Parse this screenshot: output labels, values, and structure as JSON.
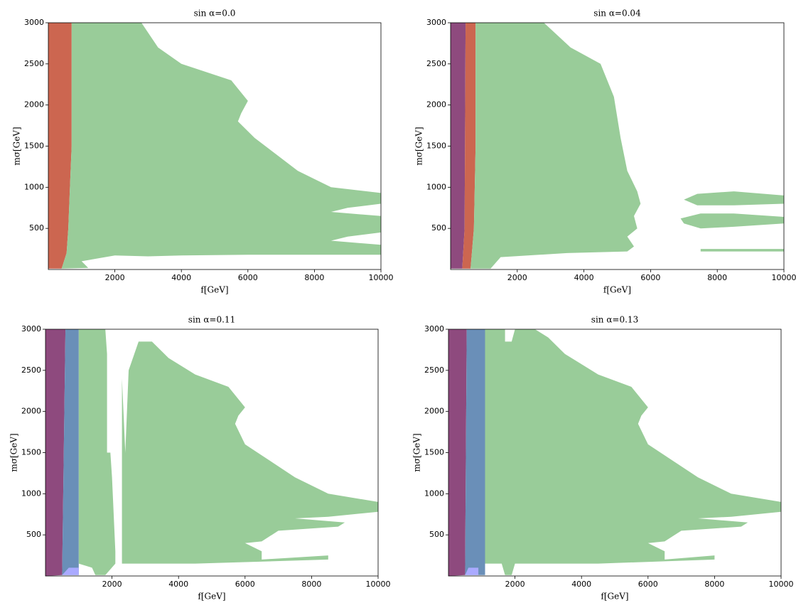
{
  "chart_data": [
    {
      "type": "area",
      "title": "sin α=0.0",
      "xlabel": "f[GeV]",
      "ylabel": "mσ[GeV]",
      "xlim": [
        0,
        10000
      ],
      "ylim": [
        0,
        3000
      ],
      "xticks": [
        2000,
        4000,
        6000,
        8000,
        10000
      ],
      "yticks": [
        500,
        1000,
        1500,
        2000,
        2500,
        3000
      ],
      "series": [
        {
          "color": "#cc6650",
          "x": [
            0,
            400,
            550,
            600,
            650,
            700,
            700,
            0
          ],
          "values": [
            10,
            10,
            200,
            500,
            1000,
            1500,
            3000,
            3000
          ]
        },
        {
          "color": "#99cc99",
          "x": [
            700,
            2800,
            3300,
            4000,
            5500,
            6000,
            5800,
            5700,
            6200,
            7500,
            8500,
            10000,
            10000,
            9000,
            8500,
            10000,
            10000,
            9000,
            8500,
            10000,
            10000,
            6000,
            4000,
            3000,
            2000,
            1000,
            1200,
            400,
            550,
            600,
            650,
            700
          ],
          "values": [
            3000,
            3000,
            2700,
            2500,
            2300,
            2050,
            1900,
            1800,
            1600,
            1200,
            1000,
            930,
            800,
            750,
            700,
            650,
            450,
            400,
            350,
            300,
            180,
            180,
            170,
            160,
            170,
            100,
            20,
            10,
            200,
            500,
            1000,
            1500
          ]
        }
      ]
    },
    {
      "type": "area",
      "title": "sin α=0.04",
      "xlabel": "f[GeV]",
      "ylabel": "mσ[GeV]",
      "xlim": [
        0,
        10000
      ],
      "ylim": [
        0,
        3000
      ],
      "xticks": [
        2000,
        4000,
        6000,
        8000,
        10000
      ],
      "yticks": [
        500,
        1000,
        1500,
        2000,
        2500,
        3000
      ],
      "series": [
        {
          "color": "#8e4a7e",
          "x": [
            0,
            350,
            420,
            450,
            0
          ],
          "values": [
            10,
            10,
            500,
            3000,
            3000
          ]
        },
        {
          "color": "#cc6650",
          "x": [
            350,
            600,
            700,
            750,
            750,
            450,
            420
          ],
          "values": [
            10,
            10,
            500,
            1500,
            3000,
            3000,
            500
          ]
        },
        {
          "color": "#99cc99",
          "x": [
            750,
            2800,
            3600,
            4500,
            4900,
            5100,
            5300,
            5600,
            5700,
            5500,
            5600,
            5300,
            5500,
            5300,
            3500,
            1500,
            1200,
            600,
            700,
            750
          ],
          "values": [
            3000,
            3000,
            2700,
            2500,
            2100,
            1600,
            1200,
            950,
            800,
            650,
            500,
            400,
            280,
            220,
            200,
            150,
            10,
            10,
            500,
            1500
          ]
        },
        {
          "color": "#99cc99",
          "x": [
            7000,
            7400,
            8500,
            10000,
            10000,
            8500,
            7400
          ],
          "values": [
            850,
            920,
            950,
            900,
            800,
            780,
            780
          ]
        },
        {
          "color": "#99cc99",
          "x": [
            6900,
            7500,
            8500,
            10000,
            10000,
            8500,
            7500,
            7000
          ],
          "values": [
            620,
            680,
            680,
            640,
            560,
            520,
            500,
            560
          ]
        },
        {
          "color": "#99cc99",
          "x": [
            7500,
            10000,
            10000,
            7500
          ],
          "values": [
            250,
            250,
            220,
            220
          ]
        }
      ]
    },
    {
      "type": "area",
      "title": "sin α=0.11",
      "xlabel": "f[GeV]",
      "ylabel": "mσ[GeV]",
      "xlim": [
        0,
        10000
      ],
      "ylim": [
        0,
        3000
      ],
      "xticks": [
        2000,
        4000,
        6000,
        8000,
        10000
      ],
      "yticks": [
        500,
        1000,
        1500,
        2000,
        2500,
        3000
      ],
      "series": [
        {
          "color": "#8e4a7e",
          "x": [
            0,
            500,
            600,
            0
          ],
          "values": [
            0,
            10,
            3000,
            3000
          ]
        },
        {
          "color": "#6a8fb8",
          "x": [
            500,
            1000,
            1000,
            600
          ],
          "values": [
            10,
            10,
            3000,
            3000
          ]
        },
        {
          "color": "#aaaaff",
          "x": [
            500,
            1000,
            1000,
            700
          ],
          "values": [
            10,
            10,
            100,
            100
          ]
        },
        {
          "color": "#99cc99",
          "x": [
            1000,
            1800,
            1850,
            1850,
            1950,
            2000,
            2100,
            2100,
            1800,
            1500,
            1400,
            1000
          ],
          "values": [
            3000,
            3000,
            2700,
            1500,
            1500,
            1200,
            300,
            150,
            10,
            10,
            100,
            150
          ]
        },
        {
          "color": "#99cc99",
          "x": [
            2400,
            2500,
            2800,
            3200,
            3700,
            4500,
            5500,
            6000,
            5800,
            5700,
            6000,
            7500,
            8500,
            10000,
            10000,
            8500,
            7500,
            9000,
            8800,
            7000,
            6500,
            6000,
            6500,
            6500,
            8500,
            8500,
            4500,
            2300,
            2300
          ],
          "values": [
            1500,
            2500,
            2850,
            2850,
            2650,
            2450,
            2300,
            2050,
            1950,
            1850,
            1600,
            1200,
            1000,
            900,
            780,
            720,
            700,
            650,
            600,
            550,
            420,
            400,
            300,
            200,
            250,
            200,
            150,
            150,
            2400
          ]
        }
      ]
    },
    {
      "type": "area",
      "title": "sin α=0.13",
      "xlabel": "f[GeV]",
      "ylabel": "mσ[GeV]",
      "xlim": [
        0,
        10000
      ],
      "ylim": [
        0,
        3000
      ],
      "xticks": [
        2000,
        4000,
        6000,
        8000,
        10000
      ],
      "yticks": [
        500,
        1000,
        1500,
        2000,
        2500,
        3000
      ],
      "series": [
        {
          "color": "#8e4a7e",
          "x": [
            0,
            500,
            550,
            0
          ],
          "values": [
            0,
            10,
            3000,
            3000
          ]
        },
        {
          "color": "#6a8fb8",
          "x": [
            500,
            1100,
            1100,
            550
          ],
          "values": [
            10,
            10,
            3000,
            3000
          ]
        },
        {
          "color": "#aaaaff",
          "x": [
            500,
            900,
            900,
            600
          ],
          "values": [
            10,
            10,
            100,
            100
          ]
        },
        {
          "color": "#99cc99",
          "x": [
            1100,
            1700,
            1700,
            1900,
            2000,
            2600,
            3000,
            3500,
            4500,
            5500,
            6000,
            5800,
            5700,
            6000,
            7500,
            8500,
            10000,
            10000,
            8500,
            7500,
            9000,
            8800,
            7000,
            6500,
            6000,
            6500,
            6500,
            8000,
            8000,
            4500,
            2000,
            1900,
            1700,
            1600,
            1100
          ],
          "values": [
            3000,
            3000,
            2850,
            2850,
            3000,
            3000,
            2900,
            2700,
            2450,
            2300,
            2050,
            1950,
            1850,
            1600,
            1200,
            1000,
            900,
            780,
            720,
            700,
            650,
            600,
            550,
            420,
            400,
            300,
            200,
            250,
            200,
            150,
            150,
            10,
            10,
            150,
            150
          ]
        }
      ]
    }
  ]
}
